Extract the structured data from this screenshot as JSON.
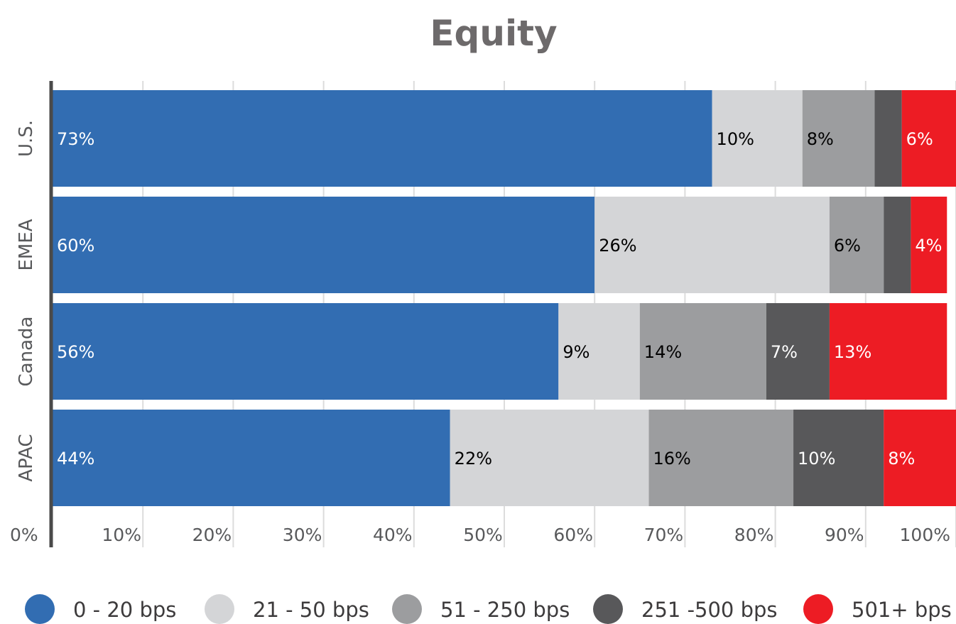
{
  "chart_data": {
    "type": "bar",
    "orientation": "horizontal",
    "stacked": true,
    "title": "Equity",
    "categories": [
      "U.S.",
      "EMEA",
      "Canada",
      "APAC"
    ],
    "x_ticks": [
      "0%",
      "10%",
      "20%",
      "30%",
      "40%",
      "50%",
      "60%",
      "70%",
      "80%",
      "90%",
      "100%"
    ],
    "xlim": [
      0,
      100
    ],
    "grid": true,
    "legend_position": "bottom",
    "series": [
      {
        "name": "0 - 20 bps",
        "color": "#326db2",
        "label_color": "#ffffff",
        "values": [
          73,
          60,
          56,
          44
        ],
        "labels": [
          "73%",
          "60%",
          "56%",
          "44%"
        ]
      },
      {
        "name": "21 - 50 bps",
        "color": "#d4d5d7",
        "label_color": "#000000",
        "values": [
          10,
          26,
          9,
          22
        ],
        "labels": [
          "10%",
          "26%",
          "9%",
          "22%"
        ]
      },
      {
        "name": "51 - 250 bps",
        "color": "#9c9d9f",
        "label_color": "#000000",
        "values": [
          8,
          6,
          14,
          16
        ],
        "labels": [
          "8%",
          "6%",
          "14%",
          "16%"
        ]
      },
      {
        "name": "251 -500 bps",
        "color": "#58585a",
        "label_color": "#ffffff",
        "values": [
          3,
          3,
          7,
          10
        ],
        "labels": [
          "",
          "",
          "7%",
          "10%"
        ]
      },
      {
        "name": "501+ bps",
        "color": "#ed1c24",
        "label_color": "#ffffff",
        "values": [
          6,
          4,
          13,
          8
        ],
        "labels": [
          "6%",
          "4%",
          "13%",
          "8%"
        ]
      }
    ]
  }
}
